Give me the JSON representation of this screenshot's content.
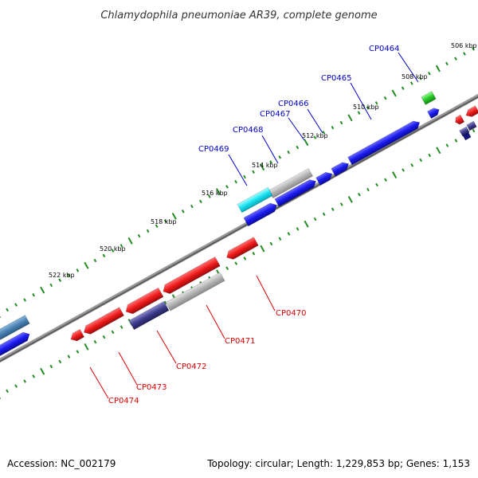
{
  "title": "Chlamydophila pneumoniae AR39, complete genome",
  "footer": {
    "accession": "Accession: NC_002179",
    "stats": "Topology: circular; Length: 1,229,853 bp; Genes: 1,153"
  },
  "colors": {
    "forward_gene": "#1a1aee",
    "reverse_gene": "#ee1a1a",
    "forward_label": "#0000cc",
    "reverse_label": "#dd0000",
    "backbone": "#777777",
    "ticks": "#228b22"
  },
  "tick_labels": [
    "506 kbp",
    "508 kbp",
    "510 kbp",
    "512 kbp",
    "514 kbp",
    "516 kbp",
    "518 kbp",
    "520 kbp",
    "522 kbp"
  ],
  "forward_gene_labels": [
    "CP0464",
    "CP0465",
    "CP0466",
    "CP0467",
    "CP0468",
    "CP0469"
  ],
  "reverse_gene_labels": [
    "CP0470",
    "CP0471",
    "CP0472",
    "CP0473",
    "CP0474"
  ]
}
